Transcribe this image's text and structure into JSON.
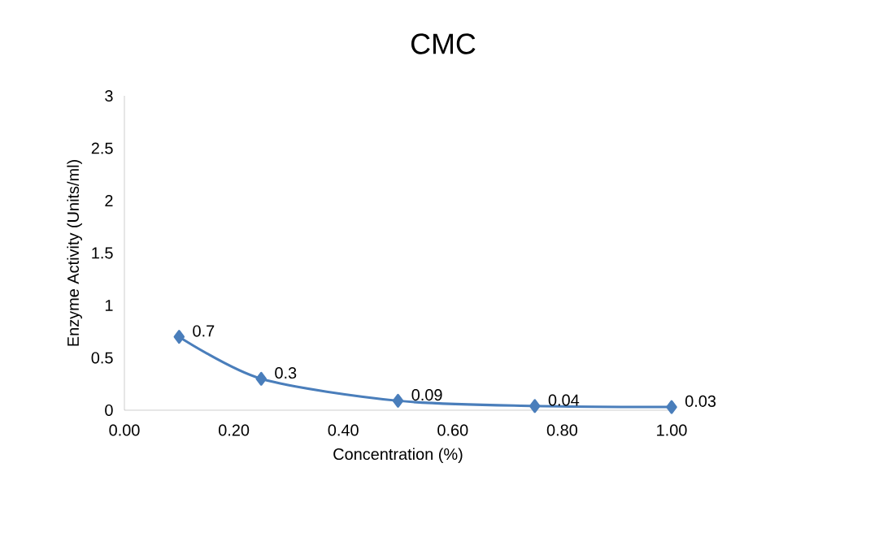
{
  "chart_data": {
    "type": "line",
    "title": "CMC",
    "xlabel": "Concentration (%)",
    "ylabel": "Enzyme Activity (Units/ml)",
    "x": [
      0.1,
      0.25,
      0.5,
      0.75,
      1.0
    ],
    "series": [
      {
        "color": "#4a7ebb",
        "values": [
          0.7,
          0.3,
          0.09,
          0.04,
          0.03
        ]
      }
    ],
    "xlim": [
      0,
      1
    ],
    "ylim": [
      0,
      3
    ],
    "xticks": [
      {
        "value": 0,
        "label": "0.00"
      },
      {
        "value": 0.2,
        "label": "0.20"
      },
      {
        "value": 0.4,
        "label": "0.40"
      },
      {
        "value": 0.6,
        "label": "0.60"
      },
      {
        "value": 0.8,
        "label": "0.80"
      },
      {
        "value": 1,
        "label": "1.00"
      }
    ],
    "yticks": [
      0,
      0.5,
      1,
      1.5,
      2,
      2.5,
      3
    ],
    "marker": "diamond",
    "line_style": "solid",
    "data_labels": true,
    "grid": false
  }
}
